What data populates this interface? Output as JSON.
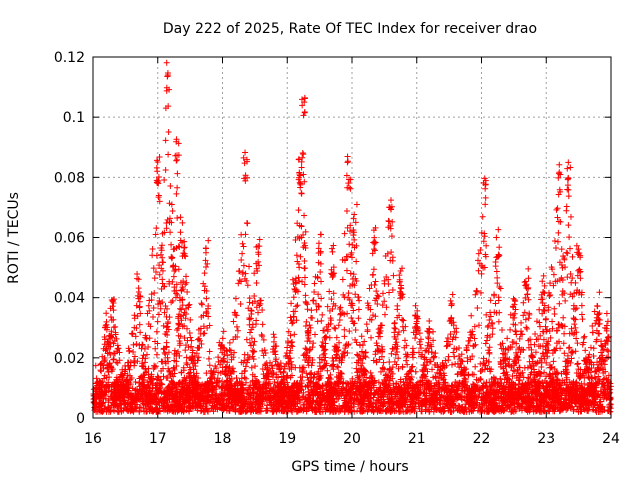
{
  "chart_data": {
    "type": "scatter",
    "title": "Day 222 of 2025, Rate Of TEC Index for receiver drao",
    "xlabel": "GPS time / hours",
    "ylabel": "ROTI / TECUs",
    "xlim": [
      16,
      24
    ],
    "ylim": [
      0,
      0.12
    ],
    "xticks": [
      "16",
      "17",
      "18",
      "19",
      "20",
      "21",
      "22",
      "23",
      "24"
    ],
    "yticks": [
      "0",
      "0.02",
      "0.04",
      "0.06",
      "0.08",
      "0.1",
      "0.12"
    ],
    "xtick_values": [
      16,
      17,
      18,
      19,
      20,
      21,
      22,
      23,
      24
    ],
    "ytick_values": [
      0,
      0.02,
      0.04,
      0.06,
      0.08,
      0.1,
      0.12
    ],
    "grid": true,
    "marker": "+",
    "marker_color": "#ff0000",
    "series": [
      {
        "name": "ROTI",
        "baseline_band": [
          0.002,
          0.012
        ],
        "arcs": [
          {
            "start": 16.0,
            "end": 16.5,
            "peak_time": 16.2,
            "peak": 0.035
          },
          {
            "start": 16.1,
            "end": 16.6,
            "peak_time": 16.3,
            "peak": 0.04
          },
          {
            "start": 16.3,
            "end": 16.9,
            "peak_time": 16.7,
            "peak": 0.048
          },
          {
            "start": 16.6,
            "end": 17.3,
            "peak_time": 17.0,
            "peak": 0.088
          },
          {
            "start": 16.8,
            "end": 17.5,
            "peak_time": 17.15,
            "peak": 0.119
          },
          {
            "start": 16.9,
            "end": 17.6,
            "peak_time": 17.3,
            "peak": 0.095
          },
          {
            "start": 17.1,
            "end": 17.7,
            "peak_time": 17.4,
            "peak": 0.065
          },
          {
            "start": 17.3,
            "end": 17.9,
            "peak_time": 17.75,
            "peak": 0.059
          },
          {
            "start": 17.6,
            "end": 18.3,
            "peak_time": 18.0,
            "peak": 0.03
          },
          {
            "start": 17.9,
            "end": 18.6,
            "peak_time": 18.35,
            "peak": 0.089
          },
          {
            "start": 18.1,
            "end": 18.8,
            "peak_time": 18.55,
            "peak": 0.062
          },
          {
            "start": 18.4,
            "end": 19.1,
            "peak_time": 18.8,
            "peak": 0.028
          },
          {
            "start": 18.8,
            "end": 19.4,
            "peak_time": 19.25,
            "peak": 0.112
          },
          {
            "start": 18.9,
            "end": 19.5,
            "peak_time": 19.2,
            "peak": 0.087
          },
          {
            "start": 19.0,
            "end": 19.7,
            "peak_time": 19.5,
            "peak": 0.063
          },
          {
            "start": 19.3,
            "end": 19.9,
            "peak_time": 19.7,
            "peak": 0.058
          },
          {
            "start": 19.5,
            "end": 20.2,
            "peak_time": 19.95,
            "peak": 0.088
          },
          {
            "start": 19.6,
            "end": 20.3,
            "peak_time": 20.05,
            "peak": 0.071
          },
          {
            "start": 19.9,
            "end": 20.6,
            "peak_time": 20.35,
            "peak": 0.066
          },
          {
            "start": 20.1,
            "end": 20.8,
            "peak_time": 20.6,
            "peak": 0.076
          },
          {
            "start": 20.4,
            "end": 21.0,
            "peak_time": 20.75,
            "peak": 0.052
          },
          {
            "start": 20.7,
            "end": 21.3,
            "peak_time": 21.0,
            "peak": 0.04
          },
          {
            "start": 20.9,
            "end": 21.6,
            "peak_time": 21.2,
            "peak": 0.034
          },
          {
            "start": 21.2,
            "end": 21.9,
            "peak_time": 21.55,
            "peak": 0.042
          },
          {
            "start": 21.5,
            "end": 22.2,
            "peak_time": 22.05,
            "peak": 0.08
          },
          {
            "start": 21.8,
            "end": 22.5,
            "peak_time": 22.25,
            "peak": 0.063
          },
          {
            "start": 22.0,
            "end": 22.7,
            "peak_time": 22.5,
            "peak": 0.04
          },
          {
            "start": 22.3,
            "end": 22.9,
            "peak_time": 22.7,
            "peak": 0.052
          },
          {
            "start": 22.5,
            "end": 23.2,
            "peak_time": 22.95,
            "peak": 0.048
          },
          {
            "start": 22.7,
            "end": 23.4,
            "peak_time": 23.2,
            "peak": 0.086
          },
          {
            "start": 22.9,
            "end": 23.6,
            "peak_time": 23.35,
            "peak": 0.086
          },
          {
            "start": 23.1,
            "end": 23.8,
            "peak_time": 23.5,
            "peak": 0.058
          },
          {
            "start": 23.3,
            "end": 24.0,
            "peak_time": 23.8,
            "peak": 0.043
          },
          {
            "start": 23.5,
            "end": 24.0,
            "peak_time": 23.95,
            "peak": 0.035
          }
        ]
      }
    ]
  }
}
